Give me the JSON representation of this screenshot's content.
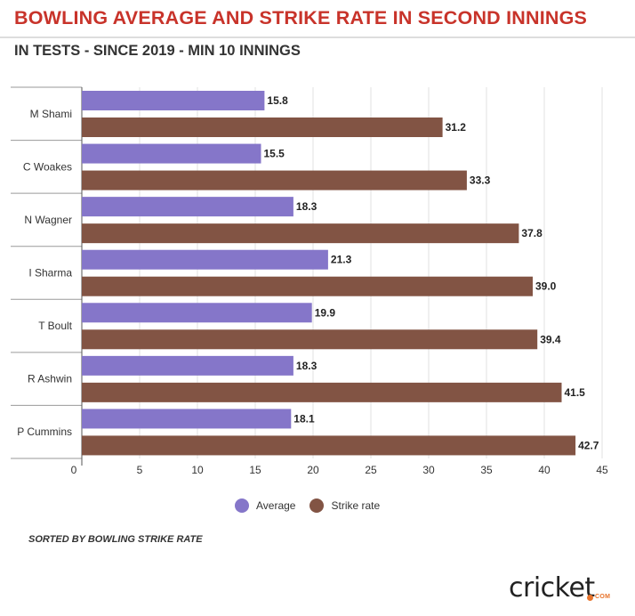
{
  "title": "BOWLING AVERAGE AND STRIKE RATE IN SECOND INNINGS",
  "subtitle": "IN TESTS - SINCE 2019 - MIN 10 INNINGS",
  "note": "SORTED BY BOWLING STRIKE RATE",
  "brand": {
    "word": "cricket",
    "suffix": "COM"
  },
  "colors": {
    "average": "#8576c9",
    "strike_rate": "#825444",
    "title": "#c8332a"
  },
  "chart_data": {
    "type": "bar",
    "orientation": "horizontal",
    "categories": [
      "M Shami",
      "C Woakes",
      "N Wagner",
      "I Sharma",
      "T Boult",
      "R Ashwin",
      "P Cummins"
    ],
    "series": [
      {
        "name": "Average",
        "values": [
          15.8,
          15.5,
          18.3,
          21.3,
          19.9,
          18.3,
          18.1
        ],
        "labels": [
          "15.8",
          "15.5",
          "18.3",
          "21.3",
          "19.9",
          "18.3",
          "18.1"
        ]
      },
      {
        "name": "Strike rate",
        "values": [
          31.2,
          33.3,
          37.8,
          39.0,
          39.4,
          41.5,
          42.7
        ],
        "labels": [
          "31.2",
          "33.3",
          "37.8",
          "39.0",
          "39.4",
          "41.5",
          "42.7"
        ]
      }
    ],
    "xlim": [
      0,
      45
    ],
    "xticks": [
      0,
      5,
      10,
      15,
      20,
      25,
      30,
      35,
      40,
      45
    ],
    "grid": true,
    "legend_position": "bottom"
  }
}
